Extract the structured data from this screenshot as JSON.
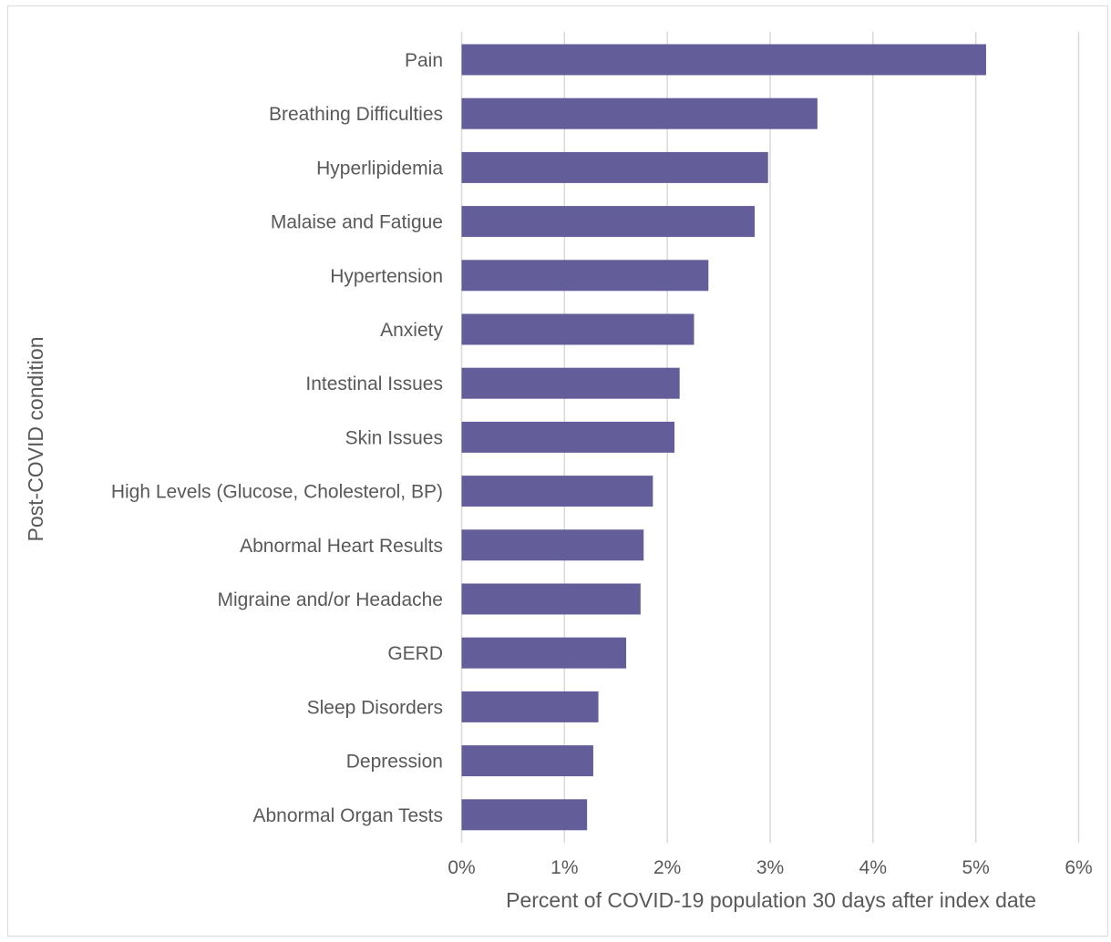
{
  "chart_data": {
    "type": "bar",
    "orientation": "horizontal",
    "title": "",
    "xlabel": "Percent of COVID-19 population 30 days after index date",
    "ylabel": "Post-COVID condition",
    "categories": [
      "Pain",
      "Breathing Difficulties",
      "Hyperlipidemia",
      "Malaise and Fatigue",
      "Hypertension",
      "Anxiety",
      "Intestinal Issues",
      "Skin Issues",
      "High Levels (Glucose, Cholesterol, BP)",
      "Abnormal Heart Results",
      "Migraine and/or Headache",
      "GERD",
      "Sleep Disorders",
      "Depression",
      "Abnormal Organ Tests"
    ],
    "values": [
      5.1,
      3.46,
      2.98,
      2.85,
      2.4,
      2.26,
      2.12,
      2.07,
      1.86,
      1.77,
      1.74,
      1.6,
      1.33,
      1.28,
      1.22
    ],
    "xlim": [
      0,
      6
    ],
    "xticks": [
      0,
      1,
      2,
      3,
      4,
      5,
      6
    ],
    "xtick_labels": [
      "0%",
      "1%",
      "2%",
      "3%",
      "4%",
      "5%",
      "6%"
    ],
    "grid": "vertical",
    "legend": "none",
    "colors": {
      "bar": "#635e99",
      "grid": "#d9d9d9",
      "text": "#595959"
    }
  }
}
